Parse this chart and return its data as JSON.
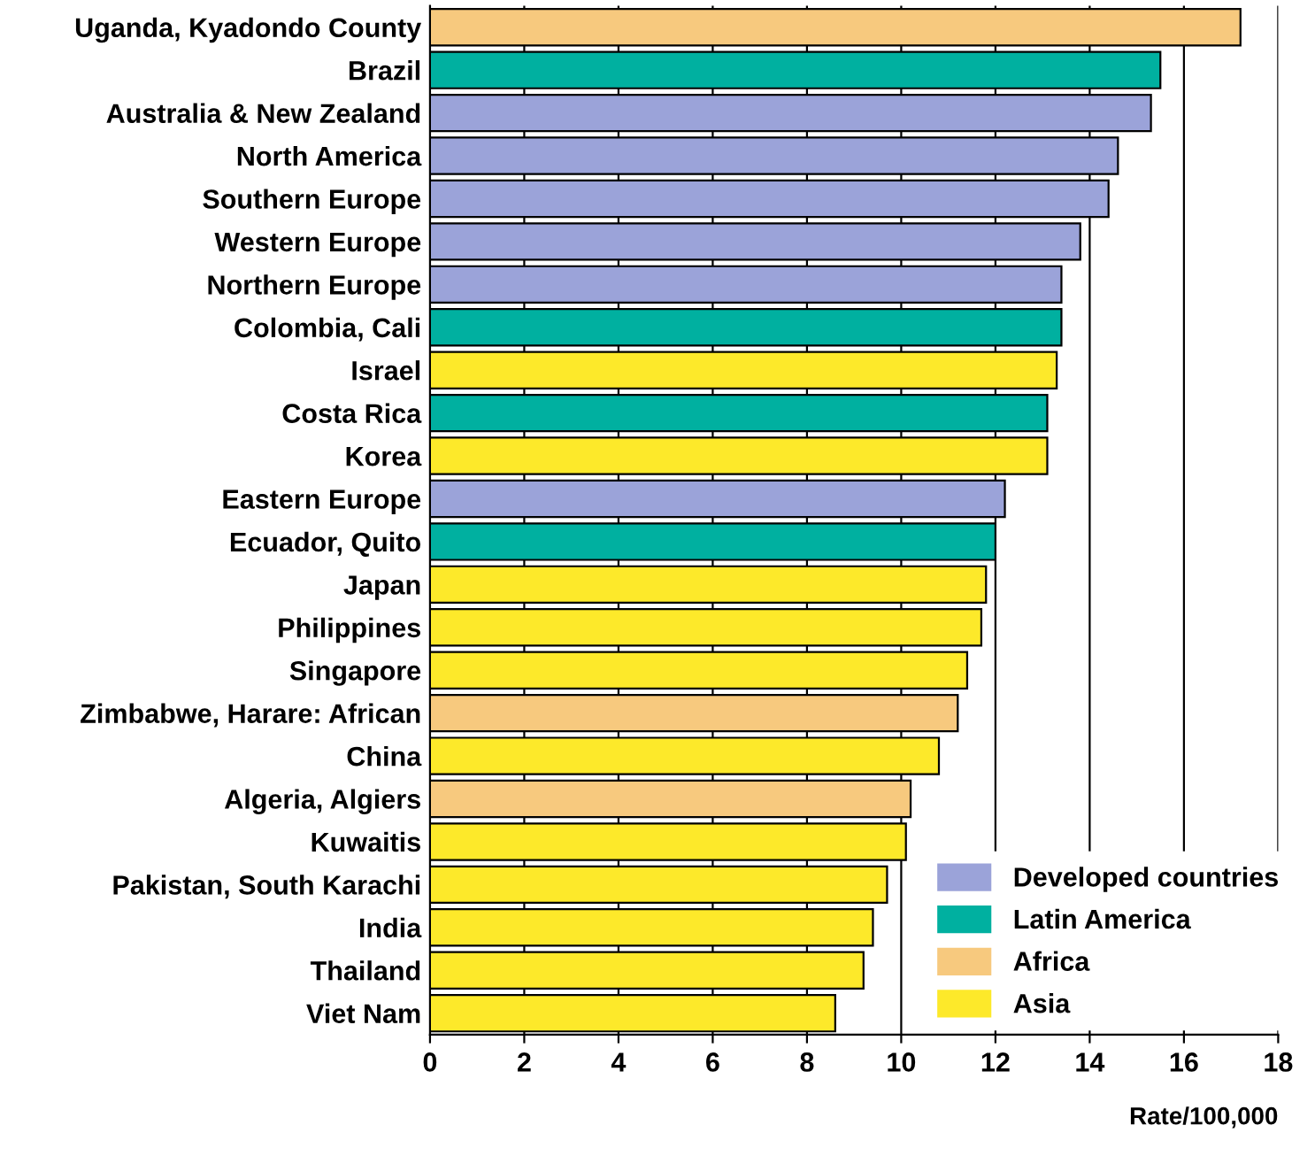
{
  "chart_data": {
    "type": "bar",
    "orientation": "horizontal",
    "xlabel": "Rate/100,000",
    "categories": [
      "Uganda, Kyadondo County",
      "Brazil",
      "Australia & New Zealand",
      "North America",
      "Southern Europe",
      "Western Europe",
      "Northern Europe",
      "Colombia, Cali",
      "Israel",
      "Costa Rica",
      "Korea",
      "Eastern Europe",
      "Ecuador, Quito",
      "Japan",
      "Philippines",
      "Singapore",
      "Zimbabwe, Harare: African",
      "China",
      "Algeria, Algiers",
      "Kuwaitis",
      "Pakistan, South Karachi",
      "India",
      "Thailand",
      "Viet Nam"
    ],
    "series": [
      {
        "name": "Developed countries",
        "color": "#9ba3d9",
        "values": [
          null,
          null,
          15.3,
          14.6,
          14.4,
          13.8,
          13.4,
          null,
          null,
          null,
          null,
          12.2,
          null,
          null,
          null,
          null,
          null,
          null,
          null,
          null,
          null,
          null,
          null,
          null
        ]
      },
      {
        "name": "Latin America",
        "color": "#00b0a0",
        "values": [
          null,
          15.5,
          null,
          null,
          null,
          null,
          null,
          13.4,
          null,
          13.1,
          null,
          null,
          12.0,
          null,
          null,
          null,
          null,
          null,
          null,
          null,
          null,
          null,
          null,
          null
        ]
      },
      {
        "name": "Africa",
        "color": "#f7c97e",
        "values": [
          17.2,
          null,
          null,
          null,
          null,
          null,
          null,
          null,
          null,
          null,
          null,
          null,
          null,
          null,
          null,
          null,
          11.2,
          null,
          10.2,
          null,
          null,
          null,
          null,
          null
        ]
      },
      {
        "name": "Asia",
        "color": "#fde92a",
        "values": [
          null,
          null,
          null,
          null,
          null,
          null,
          null,
          null,
          13.3,
          null,
          13.1,
          null,
          null,
          11.8,
          11.7,
          11.4,
          null,
          10.8,
          null,
          10.1,
          9.7,
          9.4,
          9.2,
          8.6
        ]
      }
    ],
    "xlim": [
      0,
      18
    ],
    "xticks": [
      0,
      2,
      4,
      6,
      8,
      10,
      12,
      14,
      16,
      18
    ],
    "grid": "x",
    "legend": "bottom right"
  }
}
